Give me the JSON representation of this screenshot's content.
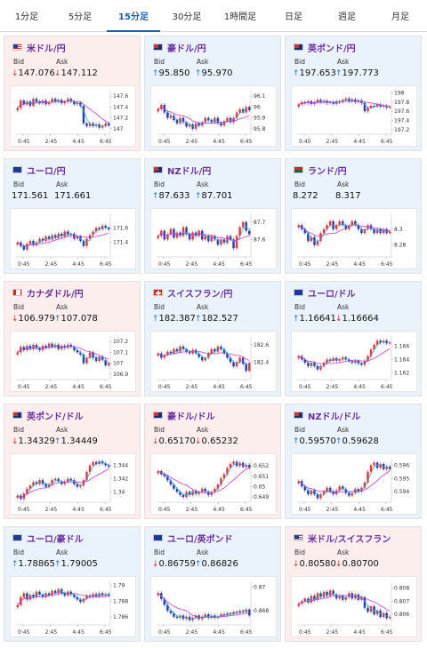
{
  "tabs": [
    "1分足",
    "5分足",
    "15分足",
    "30分足",
    "1時間足",
    "日足",
    "週足",
    "月足"
  ],
  "active_tab": 2,
  "labels": {
    "bid": "Bid",
    "ask": "Ask"
  },
  "colors": {
    "up_candle": "#e23b3b",
    "down_candle": "#2a40a8",
    "ma_short": "#2bb0d6",
    "ma_long": "#c63ad6",
    "down_bg": "#fdeeee",
    "up_bg": "#eaf3fb",
    "title": "#6a2fa0"
  },
  "x_ticks": [
    "0:45",
    "2:45",
    "4:45",
    "6:45"
  ],
  "cards": [
    {
      "title": "米ドル/円",
      "flag": "us",
      "tone": "down",
      "bid_dir": "down",
      "bid": "147.076",
      "ask_dir": "down",
      "ask": "147.112",
      "y_ticks": [
        "147.6",
        "147.4",
        "147.2",
        "147"
      ],
      "y_min": 146.9,
      "y_max": 147.7,
      "closes": [
        147.38,
        147.52,
        147.45,
        147.5,
        147.42,
        147.55,
        147.5,
        147.47,
        147.52,
        147.45,
        147.49,
        147.55,
        147.5,
        147.53,
        147.47,
        147.5,
        147.55,
        147.5,
        147.45,
        147.48,
        147.42,
        147.1,
        147.05,
        147.1,
        147.05,
        147.08,
        147.02,
        147.05,
        147.1,
        147.06
      ]
    },
    {
      "title": "豪ドル/円",
      "flag": "au",
      "tone": "up",
      "bid_dir": "up",
      "bid": "95.850",
      "ask_dir": "up",
      "ask": "95.970",
      "y_ticks": [
        "96.1",
        "96",
        "95.9",
        "95.8"
      ],
      "y_min": 95.75,
      "y_max": 96.15,
      "closes": [
        95.98,
        96.02,
        95.95,
        95.9,
        95.92,
        95.88,
        95.85,
        95.9,
        95.86,
        95.82,
        95.84,
        95.8,
        95.85,
        95.83,
        95.86,
        95.9,
        95.88,
        95.86,
        95.9,
        95.85,
        95.83,
        95.87,
        95.9,
        95.86,
        95.9,
        95.95,
        95.98,
        95.95,
        96.0,
        95.97
      ]
    },
    {
      "title": "英ポンド/円",
      "flag": "gb",
      "tone": "up",
      "bid_dir": "up",
      "bid": "197.653",
      "ask_dir": "up",
      "ask": "197.773",
      "y_ticks": [
        "198",
        "197.8",
        "197.6",
        "197.4",
        "197.2"
      ],
      "y_min": 197.1,
      "y_max": 198.05,
      "closes": [
        197.75,
        197.8,
        197.78,
        197.82,
        197.76,
        197.8,
        197.85,
        197.8,
        197.83,
        197.78,
        197.8,
        197.76,
        197.82,
        197.8,
        197.85,
        197.88,
        197.82,
        197.86,
        197.8,
        197.84,
        197.78,
        197.6,
        197.68,
        197.72,
        197.7,
        197.75,
        197.7,
        197.72,
        197.68,
        197.7
      ]
    },
    {
      "title": "ユーロ/円",
      "flag": "eu",
      "tone": "up",
      "bid_dir": "",
      "bid": "171.561",
      "ask_dir": "",
      "ask": "171.661",
      "y_ticks": [
        "171.6",
        "171.4"
      ],
      "y_min": 171.2,
      "y_max": 171.8,
      "closes": [
        171.4,
        171.35,
        171.3,
        171.38,
        171.42,
        171.36,
        171.4,
        171.45,
        171.42,
        171.48,
        171.44,
        171.5,
        171.46,
        171.52,
        171.48,
        171.55,
        171.5,
        171.52,
        171.45,
        171.48,
        171.42,
        171.35,
        171.45,
        171.5,
        171.55,
        171.6,
        171.58,
        171.63,
        171.6,
        171.58
      ]
    },
    {
      "title": "NZドル/円",
      "flag": "nz",
      "tone": "up",
      "bid_dir": "up",
      "bid": "87.633",
      "ask_dir": "up",
      "ask": "87.701",
      "y_ticks": [
        "87.7",
        "87.6"
      ],
      "y_min": 87.5,
      "y_max": 87.75,
      "closes": [
        87.62,
        87.65,
        87.6,
        87.63,
        87.66,
        87.61,
        87.64,
        87.62,
        87.67,
        87.63,
        87.6,
        87.64,
        87.62,
        87.65,
        87.6,
        87.62,
        87.59,
        87.62,
        87.6,
        87.57,
        87.6,
        87.58,
        87.62,
        87.6,
        87.55,
        87.62,
        87.67,
        87.7,
        87.65,
        87.63
      ]
    },
    {
      "title": "ランド/円",
      "flag": "za",
      "tone": "up",
      "bid_dir": "",
      "bid": "8.272",
      "ask_dir": "",
      "ask": "8.317",
      "y_ticks": [
        "8.3",
        "8.28"
      ],
      "y_min": 8.265,
      "y_max": 8.32,
      "closes": [
        8.305,
        8.3,
        8.295,
        8.285,
        8.29,
        8.28,
        8.285,
        8.295,
        8.3,
        8.305,
        8.31,
        8.3,
        8.305,
        8.31,
        8.305,
        8.3,
        8.305,
        8.31,
        8.305,
        8.3,
        8.295,
        8.3,
        8.305,
        8.3,
        8.295,
        8.3,
        8.295,
        8.3,
        8.295,
        8.297
      ]
    },
    {
      "title": "カナダドル/円",
      "flag": "ca",
      "tone": "down",
      "bid_dir": "down",
      "bid": "106.979",
      "ask_dir": "up",
      "ask": "107.078",
      "y_ticks": [
        "107.2",
        "107.1",
        "107",
        "106.9"
      ],
      "y_min": 106.85,
      "y_max": 107.25,
      "closes": [
        107.1,
        107.15,
        107.12,
        107.16,
        107.13,
        107.17,
        107.14,
        107.12,
        107.16,
        107.14,
        107.18,
        107.15,
        107.17,
        107.13,
        107.16,
        107.14,
        107.17,
        107.15,
        107.12,
        107.1,
        107.08,
        107.0,
        107.05,
        107.1,
        107.05,
        107.02,
        107.06,
        107.03,
        106.98,
        107.0
      ]
    },
    {
      "title": "スイスフラン/円",
      "flag": "ch",
      "tone": "up",
      "bid_dir": "up",
      "bid": "182.387",
      "ask_dir": "up",
      "ask": "182.527",
      "y_ticks": [
        "182.6",
        "182.4"
      ],
      "y_min": 182.2,
      "y_max": 182.7,
      "closes": [
        182.5,
        182.45,
        182.48,
        182.52,
        182.5,
        182.55,
        182.52,
        182.58,
        182.55,
        182.52,
        182.5,
        182.54,
        182.5,
        182.46,
        182.42,
        182.45,
        182.5,
        182.55,
        182.52,
        182.58,
        182.55,
        182.5,
        182.45,
        182.4,
        182.35,
        182.4,
        182.45,
        182.38,
        182.3,
        182.39
      ]
    },
    {
      "title": "ユーロ/ドル",
      "flag": "eu",
      "tone": "up",
      "bid_dir": "up",
      "bid": "1.16641",
      "ask_dir": "down",
      "ask": "1.16664",
      "y_ticks": [
        "1.166",
        "1.164",
        "1.162"
      ],
      "y_min": 1.161,
      "y_max": 1.1675,
      "closes": [
        1.1645,
        1.164,
        1.1635,
        1.163,
        1.1635,
        1.163,
        1.1625,
        1.163,
        1.1635,
        1.164,
        1.1638,
        1.1642,
        1.1638,
        1.164,
        1.1643,
        1.164,
        1.1637,
        1.1635,
        1.1638,
        1.1634,
        1.1632,
        1.1638,
        1.1645,
        1.1655,
        1.1662,
        1.1668,
        1.1665,
        1.1668,
        1.1664,
        1.1665
      ]
    },
    {
      "title": "英ポンド/ドル",
      "flag": "gb",
      "tone": "down",
      "bid_dir": "down",
      "bid": "1.34329",
      "ask_dir": "up",
      "ask": "1.34449",
      "y_ticks": [
        "1.344",
        "1.342",
        "1.34"
      ],
      "y_min": 1.3385,
      "y_max": 1.345,
      "closes": [
        1.3395,
        1.339,
        1.3398,
        1.3405,
        1.341,
        1.3415,
        1.3412,
        1.3418,
        1.3412,
        1.3408,
        1.3412,
        1.3418,
        1.342,
        1.3416,
        1.3412,
        1.3416,
        1.342,
        1.3418,
        1.3412,
        1.3408,
        1.341,
        1.3418,
        1.343,
        1.344,
        1.3445,
        1.3442,
        1.3446,
        1.3443,
        1.344,
        1.3438
      ]
    },
    {
      "title": "豪ドル/ドル",
      "flag": "au",
      "tone": "down",
      "bid_dir": "down",
      "bid": "0.65170",
      "ask_dir": "down",
      "ask": "0.65232",
      "y_ticks": [
        "0.652",
        "0.651",
        "0.65",
        "0.649"
      ],
      "y_min": 0.6485,
      "y_max": 0.6527,
      "closes": [
        0.6515,
        0.6512,
        0.651,
        0.6506,
        0.6502,
        0.6498,
        0.6495,
        0.6492,
        0.649,
        0.6495,
        0.6492,
        0.6496,
        0.6493,
        0.6495,
        0.6498,
        0.6495,
        0.6492,
        0.6495,
        0.6498,
        0.6502,
        0.6508,
        0.6512,
        0.6518,
        0.6522,
        0.6524,
        0.652,
        0.6523,
        0.6519,
        0.6521,
        0.6518
      ]
    },
    {
      "title": "NZドル/ドル",
      "flag": "nz",
      "tone": "up",
      "bid_dir": "up",
      "bid": "0.59570",
      "ask_dir": "up",
      "ask": "0.59628",
      "y_ticks": [
        "0.596",
        "0.595",
        "0.594"
      ],
      "y_min": 0.5932,
      "y_max": 0.5965,
      "closes": [
        0.5948,
        0.5944,
        0.5941,
        0.5938,
        0.5941,
        0.5938,
        0.5935,
        0.5938,
        0.594,
        0.5943,
        0.594,
        0.5938,
        0.5941,
        0.5944,
        0.5942,
        0.5939,
        0.5937,
        0.5939,
        0.5942,
        0.594,
        0.5943,
        0.5947,
        0.5955,
        0.596,
        0.5962,
        0.5958,
        0.5961,
        0.5957,
        0.5959,
        0.5957
      ]
    },
    {
      "title": "ユーロ/豪ドル",
      "flag": "eu",
      "tone": "up",
      "bid_dir": "up",
      "bid": "1.78865",
      "ask_dir": "up",
      "ask": "1.79005",
      "y_ticks": [
        "1.79",
        "1.788",
        "1.786"
      ],
      "y_min": 1.785,
      "y_max": 1.7905,
      "closes": [
        1.7875,
        1.7885,
        1.789,
        1.7882,
        1.7888,
        1.7885,
        1.7892,
        1.7888,
        1.7885,
        1.789,
        1.7887,
        1.7893,
        1.789,
        1.7895,
        1.789,
        1.7887,
        1.7892,
        1.7888,
        1.7885,
        1.7882,
        1.7879,
        1.7883,
        1.7887,
        1.7885,
        1.7889,
        1.7886,
        1.789,
        1.7887,
        1.7889,
        1.7887
      ]
    },
    {
      "title": "ユーロ/英ポンド",
      "flag": "eu",
      "tone": "up",
      "bid_dir": "down",
      "bid": "0.86759",
      "ask_dir": "up",
      "ask": "0.86826",
      "y_ticks": [
        "0.87",
        "0.868"
      ],
      "y_min": 0.8668,
      "y_max": 0.8705,
      "closes": [
        0.8695,
        0.869,
        0.8685,
        0.868,
        0.8678,
        0.8675,
        0.8674,
        0.8676,
        0.8673,
        0.8675,
        0.8672,
        0.8674,
        0.8676,
        0.8673,
        0.8675,
        0.8677,
        0.8674,
        0.8676,
        0.8674,
        0.8675,
        0.8677,
        0.8676,
        0.8678,
        0.8677,
        0.8679,
        0.8678,
        0.868,
        0.8679,
        0.8681,
        0.8676
      ]
    },
    {
      "title": "米ドル/スイスフラン",
      "flag": "us",
      "tone": "down",
      "bid_dir": "down",
      "bid": "0.80580",
      "ask_dir": "down",
      "ask": "0.80700",
      "y_ticks": [
        "0.808",
        "0.807",
        "0.806"
      ],
      "y_min": 0.8052,
      "y_max": 0.8085,
      "closes": [
        0.8068,
        0.807,
        0.8072,
        0.8069,
        0.8074,
        0.8071,
        0.8076,
        0.8073,
        0.8077,
        0.8074,
        0.8078,
        0.8075,
        0.8072,
        0.8074,
        0.8071,
        0.8073,
        0.8076,
        0.8072,
        0.8075,
        0.8071,
        0.8073,
        0.8065,
        0.8062,
        0.8066,
        0.806,
        0.8063,
        0.8058,
        0.8061,
        0.8057,
        0.8058
      ]
    }
  ]
}
